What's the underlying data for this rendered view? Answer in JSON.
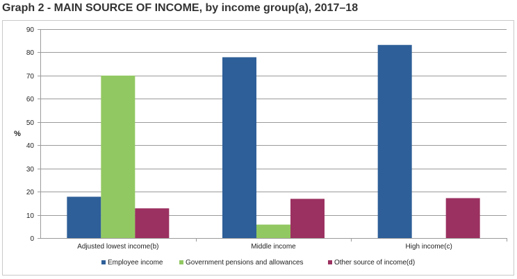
{
  "title": "Graph 2 - MAIN SOURCE OF INCOME, by income group(a), 2017–18",
  "chart_data": {
    "type": "bar",
    "title": "Graph 2 - MAIN SOURCE OF INCOME, by income group(a), 2017–18",
    "xlabel": "",
    "ylabel": "%",
    "ylim": [
      0,
      90
    ],
    "yticks": [
      0,
      10,
      20,
      30,
      40,
      50,
      60,
      70,
      80,
      90
    ],
    "grid": true,
    "legend_position": "bottom",
    "categories": [
      "Adjusted lowest income(b)",
      "Middle income",
      "High income(c)"
    ],
    "series": [
      {
        "name": "Employee income",
        "color": "#2e5f98",
        "values": [
          17.8,
          77.9,
          83.2
        ]
      },
      {
        "name": "Government pensions and allowances",
        "color": "#92c862",
        "values": [
          70.0,
          5.8,
          0
        ]
      },
      {
        "name": "Other source of income(d)",
        "color": "#9b3160",
        "values": [
          12.8,
          16.9,
          17.2
        ]
      }
    ]
  }
}
